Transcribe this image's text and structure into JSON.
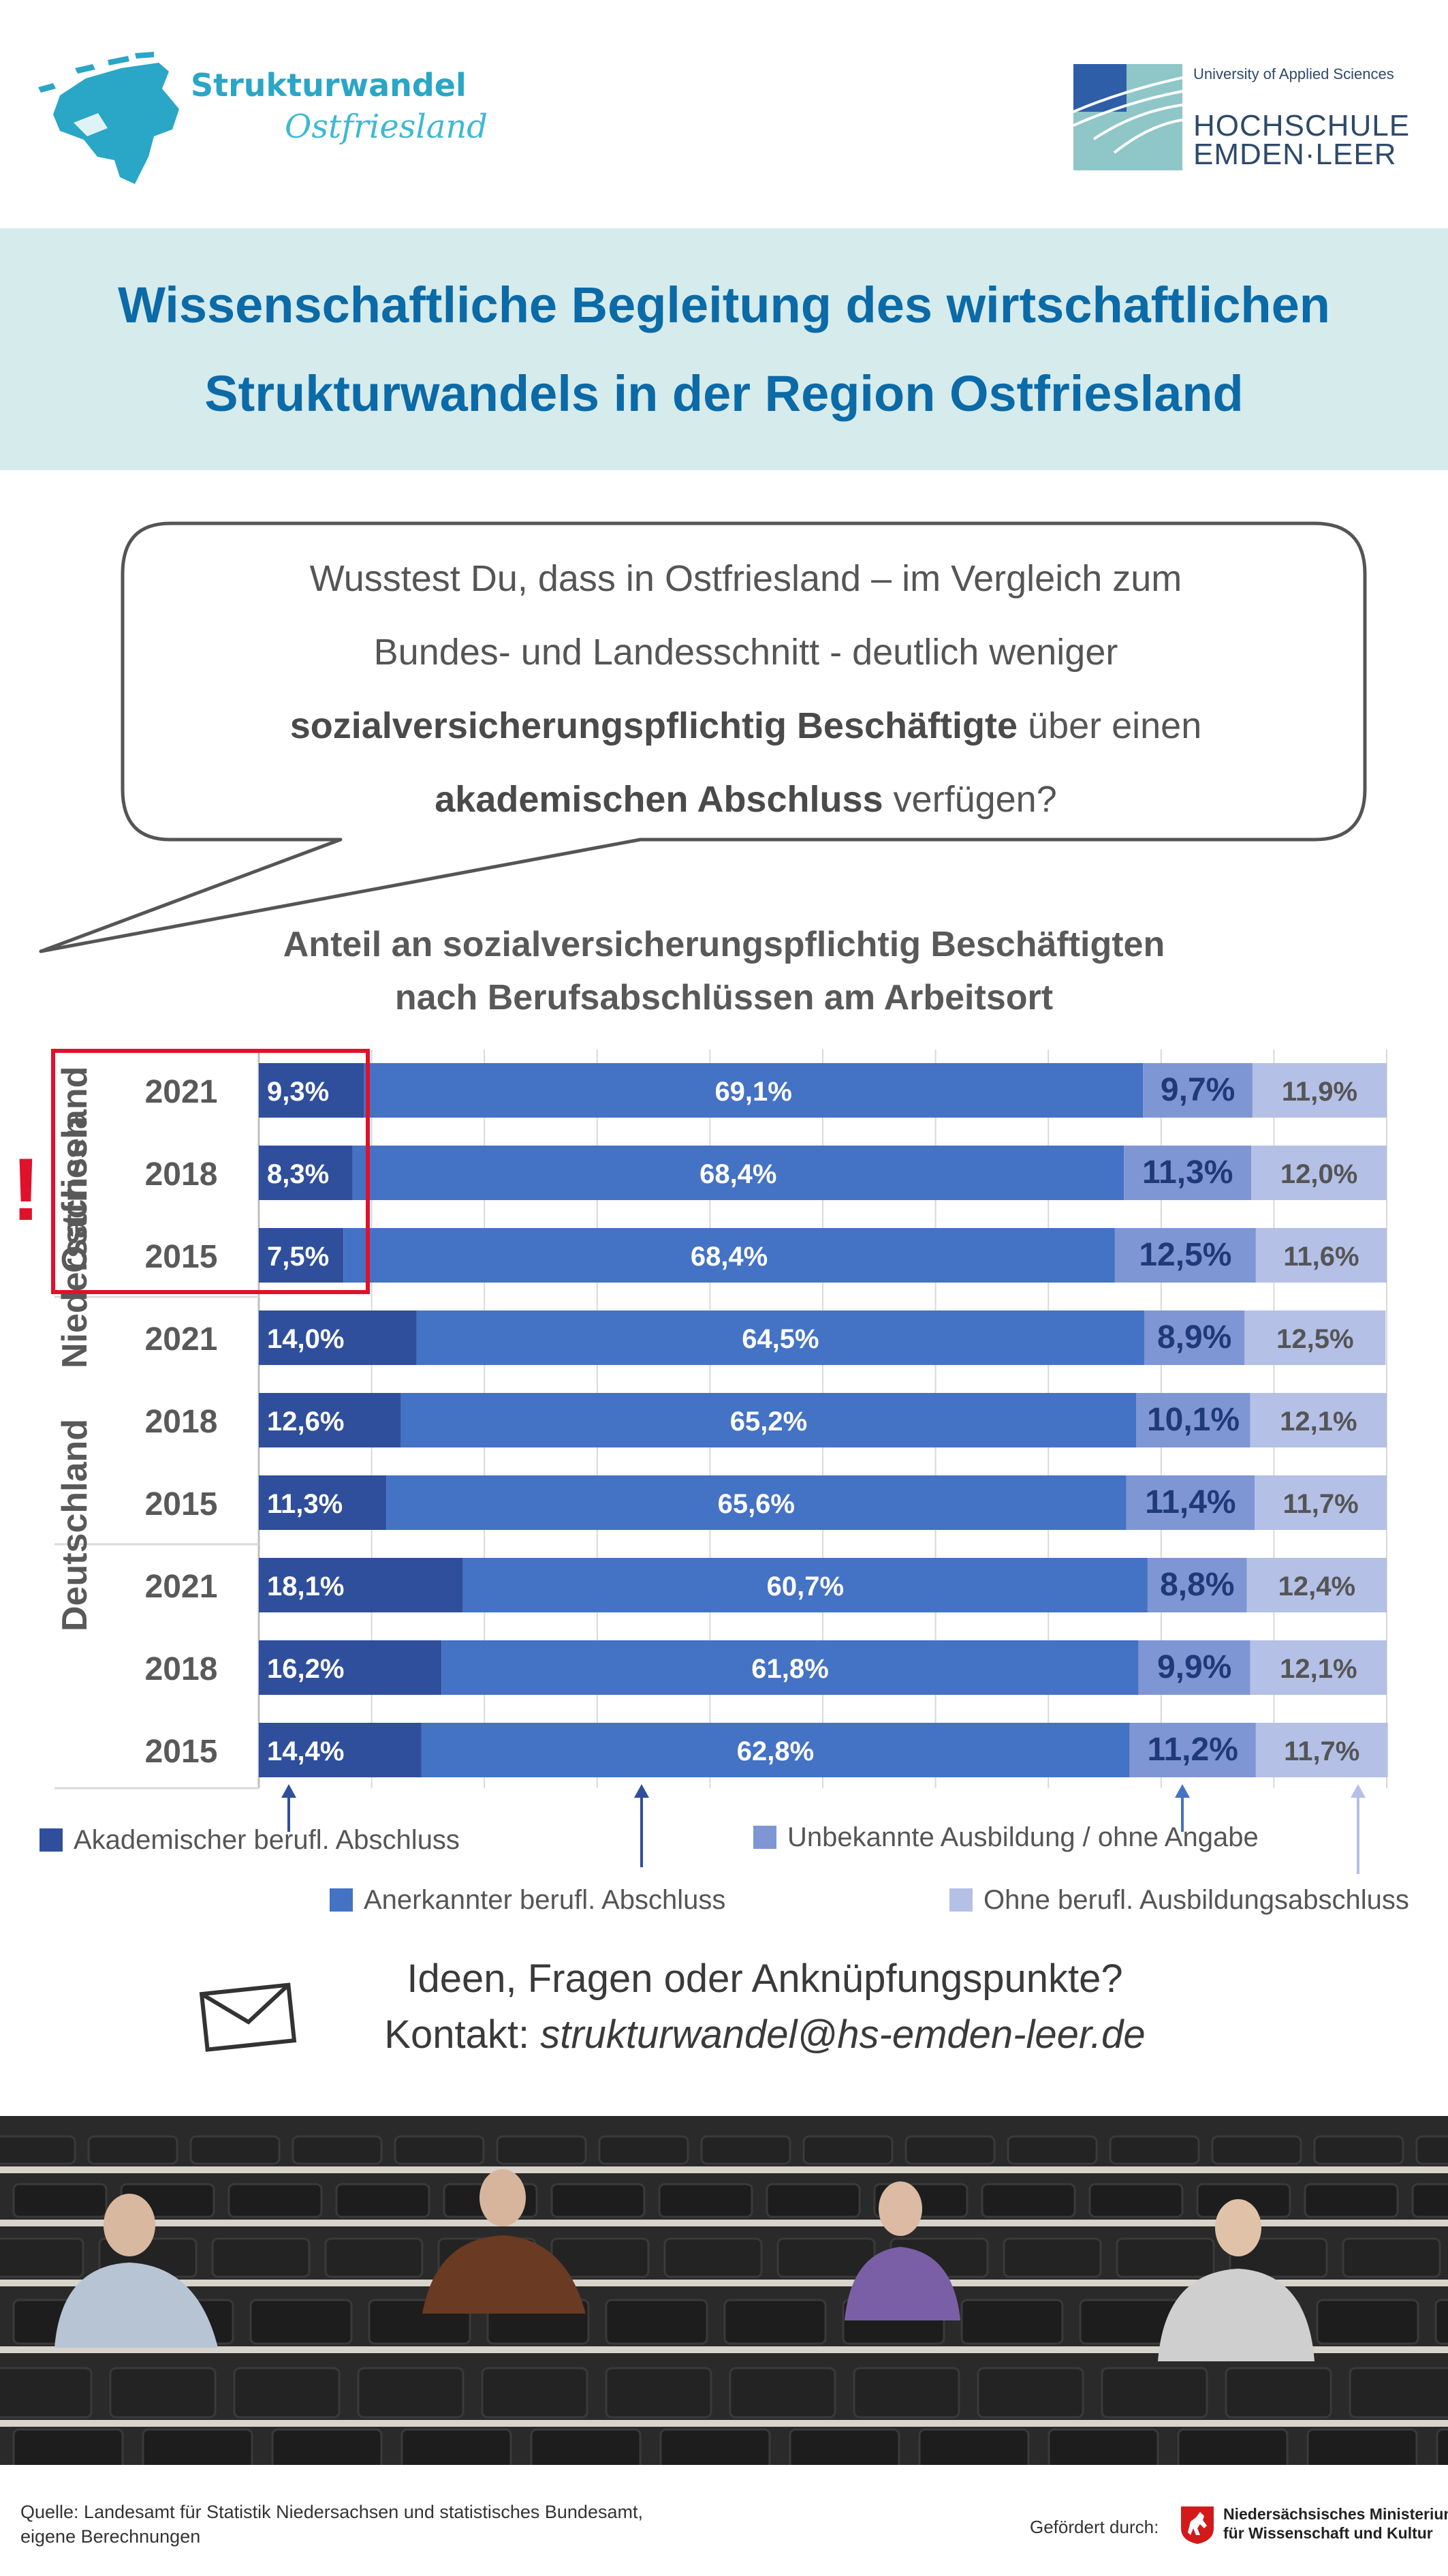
{
  "header": {
    "left_logo": {
      "line1": "Strukturwandel",
      "line2": "Ostfriesland"
    },
    "right_logo": {
      "tagline": "University of Applied Sciences",
      "line1": "HOCHSCHULE",
      "line2": "EMDEN·LEER"
    }
  },
  "banner": {
    "line1": "Wissenschaftliche Begleitung des wirtschaftlichen",
    "line2": "Strukturwandels in der Region Ostfriesland"
  },
  "bubble": {
    "line1": "Wusstest Du, dass in Ostfriesland – im Vergleich zum",
    "line2": "Bundes- und Landesschnitt - deutlich weniger",
    "line3_bold": "sozialversicherungspflichtig Beschäftigte",
    "line3_rest": " über einen",
    "line4_bold": "akademischen Abschluss",
    "line4_rest": " verfügen?"
  },
  "chart_data": {
    "type": "bar",
    "orientation": "horizontal",
    "stacked": "100%",
    "title_line1": "Anteil an sozialversicherungspflichtig Beschäftigten",
    "title_line2": "nach Berufsabschlüssen am Arbeitsort",
    "groups": [
      "Ostfriesland",
      "Niedersachsen",
      "Deutschland"
    ],
    "categories": [
      "2021",
      "2018",
      "2015",
      "2021",
      "2018",
      "2015",
      "2021",
      "2018",
      "2015"
    ],
    "series": [
      {
        "name": "Akademischer berufl. Abschluss",
        "color": "#2f4f9c",
        "values": [
          9.3,
          8.3,
          7.5,
          14.0,
          12.6,
          11.3,
          18.1,
          16.2,
          14.4
        ],
        "labels": [
          "9,3%",
          "8,3%",
          "7,5%",
          "14,0%",
          "12,6%",
          "11,3%",
          "18,1%",
          "16,2%",
          "14,4%"
        ]
      },
      {
        "name": "Anerkannter berufl. Abschluss",
        "color": "#4472c4",
        "values": [
          69.1,
          68.4,
          68.4,
          64.5,
          65.2,
          65.6,
          60.7,
          61.8,
          62.8
        ],
        "labels": [
          "69,1%",
          "68,4%",
          "68,4%",
          "64,5%",
          "65,2%",
          "65,6%",
          "60,7%",
          "61,8%",
          "62,8%"
        ]
      },
      {
        "name": "Unbekannte Ausbildung / ohne Angabe",
        "color": "#7f96d4",
        "values": [
          9.7,
          11.3,
          12.5,
          8.9,
          10.1,
          11.4,
          8.8,
          9.9,
          11.2
        ],
        "labels": [
          "9,7%",
          "11,3%",
          "12,5%",
          "8,9%",
          "10,1%",
          "11,4%",
          "8,8%",
          "9,9%",
          "11,2%"
        ]
      },
      {
        "name": "Ohne berufl. Ausbildungsabschluss",
        "color": "#b4c0e6",
        "values": [
          11.9,
          12.0,
          11.6,
          12.5,
          12.1,
          11.7,
          12.4,
          12.1,
          11.7
        ],
        "labels": [
          "11,9%",
          "12,0%",
          "11,6%",
          "12,5%",
          "12,1%",
          "11,7%",
          "12,4%",
          "12,1%",
          "11,7%"
        ]
      }
    ],
    "xlim": [
      0,
      100
    ],
    "grid": true,
    "legend_position": "bottom",
    "highlight": {
      "group": "Ostfriesland",
      "series": "Akademischer berufl. Abschluss",
      "color": "#e0112b",
      "marker": "!"
    }
  },
  "contact": {
    "question": "Ideen, Fragen oder Anknüpfungspunkte?",
    "label": "Kontakt: ",
    "email": "strukturwandel@hs-emden-leer.de"
  },
  "footer": {
    "source_line1": "Quelle: Landesamt für Statistik Niedersachsen und statistisches Bundesamt,",
    "source_line2": "eigene Berechnungen",
    "funded_by": "Gefördert durch:",
    "ministry_line1": "Niedersächsisches Ministerium",
    "ministry_line2": "für Wissenschaft und Kultur"
  }
}
